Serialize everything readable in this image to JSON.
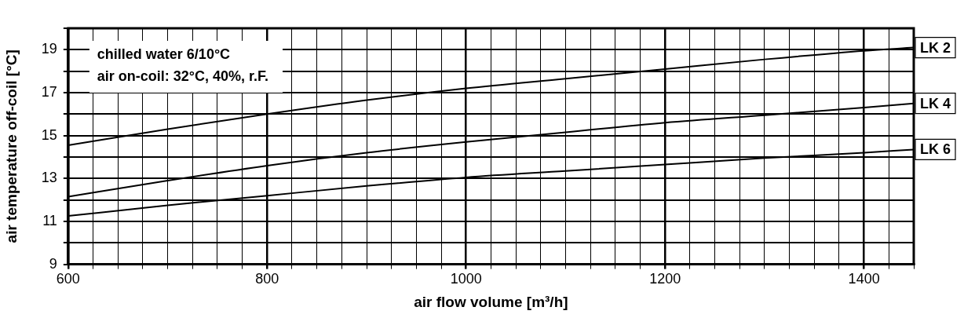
{
  "chart_data": {
    "type": "line",
    "xlabel": "air flow volume [m³/h]",
    "ylabel": "air temperature off-coil [°C]",
    "x": [
      600,
      700,
      800,
      900,
      1000,
      1100,
      1200,
      1300,
      1400,
      1450
    ],
    "series": [
      {
        "name": "LK 2",
        "color": "#000000",
        "values": [
          14.55,
          15.3,
          16.0,
          16.65,
          17.2,
          17.65,
          18.1,
          18.55,
          18.95,
          19.1
        ]
      },
      {
        "name": "LK 4",
        "color": "#000000",
        "values": [
          12.15,
          12.9,
          13.6,
          14.2,
          14.7,
          15.15,
          15.6,
          15.95,
          16.3,
          16.5
        ]
      },
      {
        "name": "LK 6",
        "color": "#000000",
        "values": [
          11.25,
          11.75,
          12.2,
          12.65,
          13.05,
          13.35,
          13.65,
          13.95,
          14.2,
          14.35
        ]
      }
    ],
    "xlim": [
      600,
      1450
    ],
    "xticks": [
      600,
      {
        "value": 625,
        "label": null
      },
      {
        "value": 650,
        "label": null
      },
      {
        "value": 675,
        "label": null
      },
      {
        "value": 700,
        "label": null
      },
      {
        "value": 725,
        "label": null
      },
      {
        "value": 750,
        "label": null
      },
      {
        "value": 775,
        "label": null
      },
      800,
      {
        "value": 825,
        "label": null
      },
      {
        "value": 850,
        "label": null
      },
      {
        "value": 875,
        "label": null
      },
      {
        "value": 900,
        "label": null
      },
      {
        "value": 925,
        "label": null
      },
      {
        "value": 950,
        "label": null
      },
      {
        "value": 975,
        "label": null
      },
      1000,
      {
        "value": 1025,
        "label": null
      },
      {
        "value": 1050,
        "label": null
      },
      {
        "value": 1075,
        "label": null
      },
      {
        "value": 1100,
        "label": null
      },
      {
        "value": 1125,
        "label": null
      },
      {
        "value": 1150,
        "label": null
      },
      {
        "value": 1175,
        "label": null
      },
      1200,
      {
        "value": 1225,
        "label": null
      },
      {
        "value": 1250,
        "label": null
      },
      {
        "value": 1275,
        "label": null
      },
      {
        "value": 1300,
        "label": null
      },
      {
        "value": 1325,
        "label": null
      },
      {
        "value": 1350,
        "label": null
      },
      {
        "value": 1375,
        "label": null
      },
      1400,
      {
        "value": 1425,
        "label": null
      },
      {
        "value": 1450,
        "label": null
      }
    ],
    "ylim": [
      9,
      20
    ],
    "yticks": [
      9,
      {
        "value": 10,
        "label": null
      },
      11,
      {
        "value": 12,
        "label": null
      },
      13,
      {
        "value": 14,
        "label": null
      },
      15,
      {
        "value": 16,
        "label": null
      },
      17,
      {
        "value": 18,
        "label": null
      },
      19,
      {
        "value": 20,
        "label": null
      }
    ],
    "grid": true,
    "legend": false,
    "marker": "none",
    "line_style": "solid",
    "annotations": [
      "chilled water 6/10°C",
      "air on-coil: 32°C, 40%, r.F."
    ]
  }
}
